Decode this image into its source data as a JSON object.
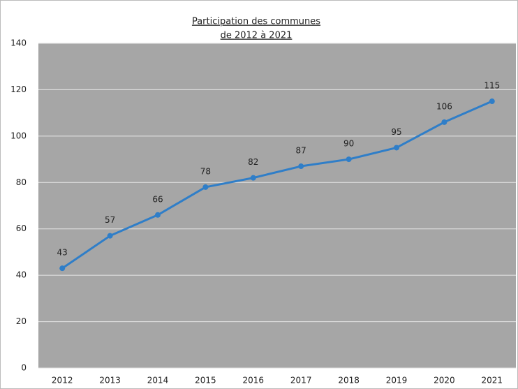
{
  "chart_data": {
    "type": "line",
    "title": [
      "Participation des communes",
      "de 2012 à 2021"
    ],
    "categories": [
      "2012",
      "2013",
      "2014",
      "2015",
      "2016",
      "2017",
      "2018",
      "2019",
      "2020",
      "2021"
    ],
    "values": [
      43,
      57,
      66,
      78,
      82,
      87,
      90,
      95,
      106,
      115
    ],
    "color": "#2f7ec8",
    "ylim": [
      0,
      140
    ],
    "yticks": [
      0,
      20,
      40,
      60,
      80,
      100,
      120,
      140
    ],
    "grid": true
  }
}
